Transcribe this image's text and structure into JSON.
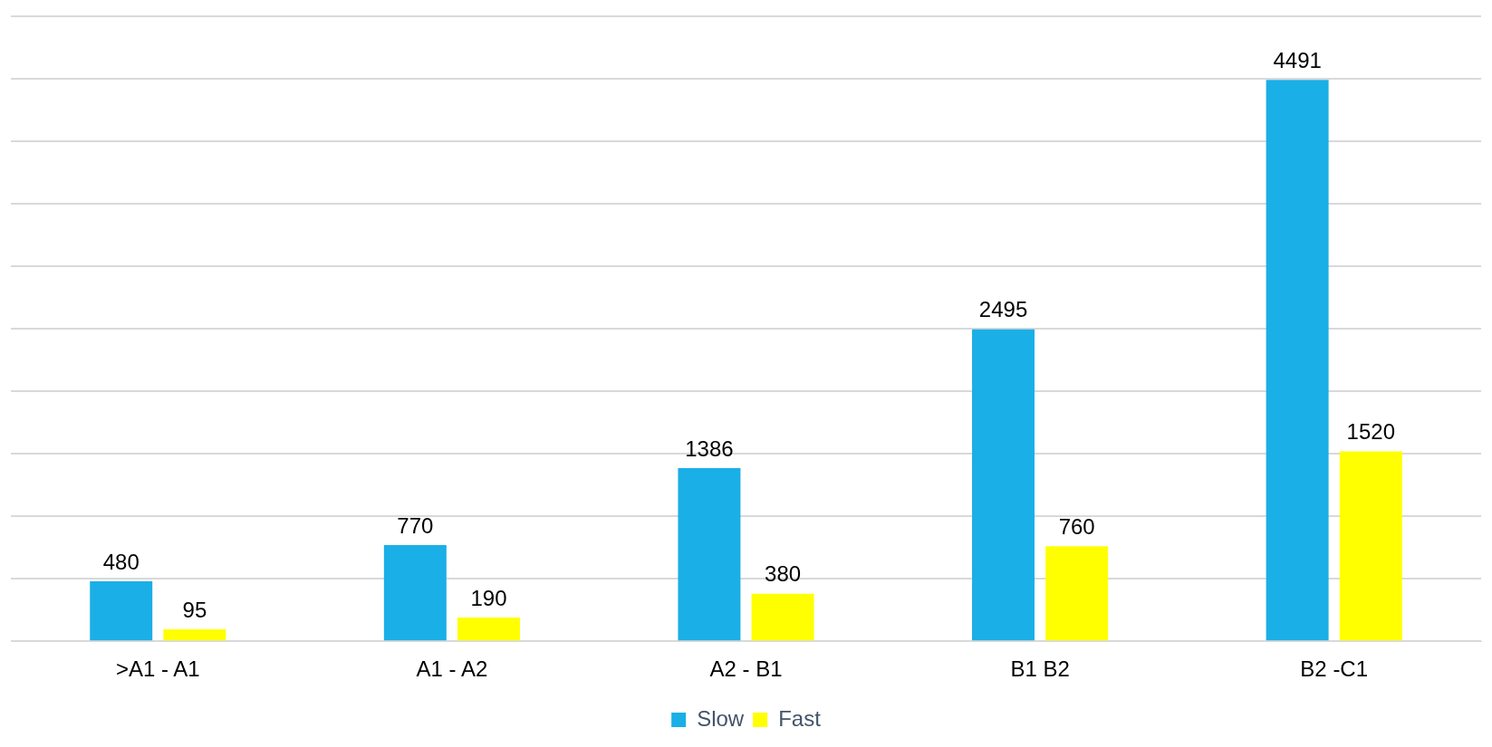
{
  "chart_data": {
    "type": "bar",
    "categories": [
      ">A1 - A1",
      "A1 - A2",
      "A2 - B1",
      "B1 B2",
      "B2 -C1"
    ],
    "series": [
      {
        "name": "Slow",
        "color": "#1aafe6",
        "values": [
          480,
          770,
          1386,
          2495,
          4491
        ]
      },
      {
        "name": "Fast",
        "color": "#ffff00",
        "values": [
          95,
          190,
          380,
          760,
          1520
        ]
      }
    ],
    "ylim": [
      0,
      5000
    ],
    "yticks": [
      0,
      500,
      1000,
      1500,
      2000,
      2500,
      3000,
      3500,
      4000,
      4500,
      5000
    ],
    "tick_labels": "x",
    "grid": "y",
    "legend": "bottom",
    "data_labels": true
  }
}
